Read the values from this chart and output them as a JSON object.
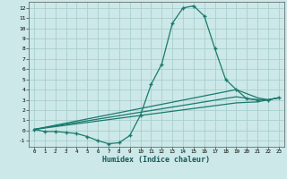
{
  "title": "",
  "xlabel": "Humidex (Indice chaleur)",
  "ylabel": "",
  "background_color": "#cce8e8",
  "grid_color": "#aacece",
  "line_color": "#1a7a6e",
  "xlim": [
    -0.5,
    23.5
  ],
  "ylim": [
    -1.6,
    12.6
  ],
  "xticks": [
    0,
    1,
    2,
    3,
    4,
    5,
    6,
    7,
    8,
    9,
    10,
    11,
    12,
    13,
    14,
    15,
    16,
    17,
    18,
    19,
    20,
    21,
    22,
    23
  ],
  "yticks": [
    -1,
    0,
    1,
    2,
    3,
    4,
    5,
    6,
    7,
    8,
    9,
    10,
    11,
    12
  ],
  "series": [
    {
      "x": [
        0,
        1,
        2,
        3,
        4,
        5,
        6,
        7,
        8,
        9,
        10,
        11,
        12,
        13,
        14,
        15,
        16,
        17,
        18,
        19,
        20,
        21,
        22,
        23
      ],
      "y": [
        0.1,
        -0.1,
        -0.1,
        -0.2,
        -0.3,
        -0.6,
        -1.0,
        -1.3,
        -1.2,
        -0.5,
        1.5,
        4.5,
        6.5,
        10.5,
        12.0,
        12.2,
        11.2,
        8.0,
        5.0,
        4.0,
        3.1,
        3.0,
        3.0,
        3.2
      ],
      "marker": "+",
      "markersize": 3.5,
      "lw": 0.9
    },
    {
      "x": [
        0,
        19,
        21,
        22,
        23
      ],
      "y": [
        0.1,
        4.0,
        3.2,
        3.0,
        3.2
      ],
      "marker": null,
      "markersize": 0,
      "lw": 0.9
    },
    {
      "x": [
        0,
        19,
        21,
        22,
        23
      ],
      "y": [
        0.1,
        3.3,
        3.0,
        3.0,
        3.2
      ],
      "marker": null,
      "markersize": 0,
      "lw": 0.9
    },
    {
      "x": [
        0,
        19,
        21,
        22,
        23
      ],
      "y": [
        0.1,
        2.7,
        2.8,
        3.0,
        3.2
      ],
      "marker": null,
      "markersize": 0,
      "lw": 0.9
    }
  ]
}
